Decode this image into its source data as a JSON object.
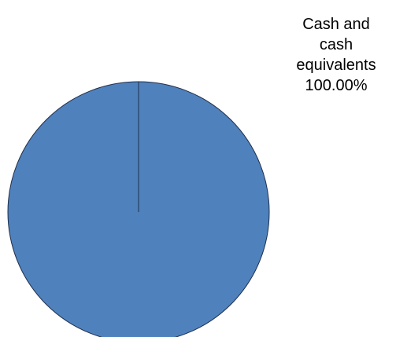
{
  "chart_data": {
    "type": "pie",
    "slices": [
      {
        "category": "Cash and cash equivalents",
        "value": 100.0,
        "percent_label": "100.00%",
        "color": "#4F81BD"
      }
    ],
    "legend": "none",
    "data_labels": "outside-top-right"
  },
  "label": {
    "line1": "Cash and",
    "line2": "cash",
    "line3": "equivalents",
    "percent": "100.00%"
  },
  "colors": {
    "slice_fill": "#4F81BD",
    "slice_stroke": "#1F2F4A",
    "background": "#FFFFFF"
  }
}
